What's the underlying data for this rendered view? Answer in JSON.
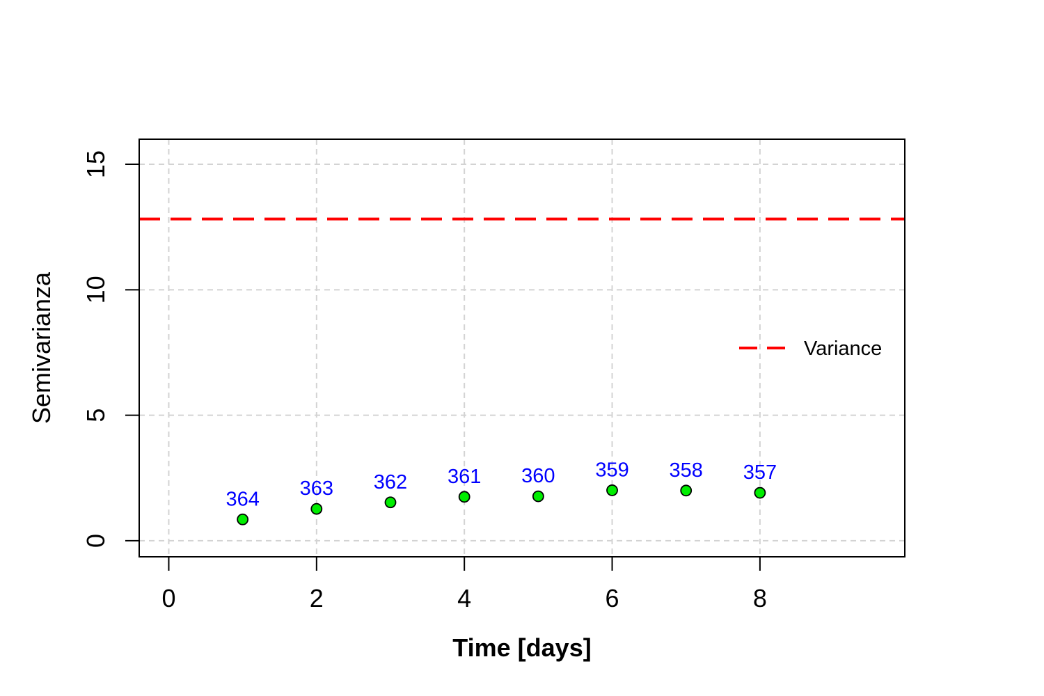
{
  "chart_data": {
    "type": "scatter",
    "title": "",
    "xlabel": "Time [days]",
    "ylabel": "Semivarianza",
    "xlim": [
      -0.4,
      9.96
    ],
    "ylim": [
      -0.64,
      16.0
    ],
    "x_ticks": [
      0,
      2,
      4,
      6,
      8
    ],
    "y_ticks": [
      0,
      5,
      10,
      15
    ],
    "grid": true,
    "grid_x": [
      0,
      2,
      4,
      6,
      8
    ],
    "grid_y": [
      0,
      5,
      10,
      15
    ],
    "series": [
      {
        "x": [
          1,
          2,
          3,
          4,
          5,
          6,
          7,
          8
        ],
        "y": [
          0.85,
          1.27,
          1.53,
          1.75,
          1.77,
          2.01,
          2.0,
          1.91
        ],
        "point_labels": [
          "364",
          "363",
          "362",
          "361",
          "360",
          "359",
          "358",
          "357"
        ],
        "point_color": "#00ee00",
        "label_color": "#0000ff"
      }
    ],
    "reference_lines": [
      {
        "name": "Variance",
        "y": 12.82,
        "color": "#ff0000",
        "style": "dashed"
      }
    ],
    "legend": {
      "position": "right",
      "entries": [
        "Variance"
      ]
    }
  }
}
